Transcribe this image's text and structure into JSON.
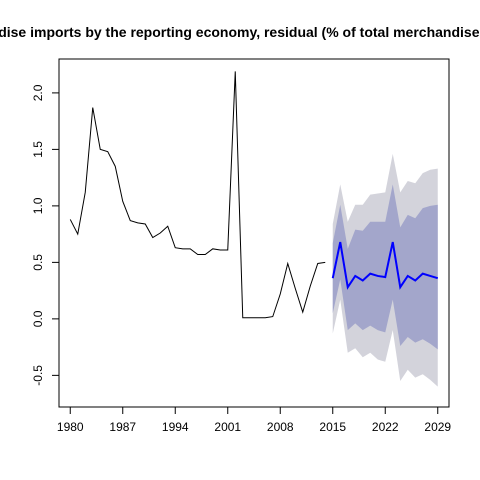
{
  "chart_data": {
    "type": "line",
    "title": "Merchandise imports by the reporting economy, residual (% of total merchandise imports)",
    "xlabel": "",
    "ylabel": "",
    "xlim": [
      1978.5,
      2030.5
    ],
    "ylim": [
      -0.78,
      2.3
    ],
    "xticks": [
      1980,
      1987,
      1994,
      2001,
      2008,
      2015,
      2022,
      2029
    ],
    "yticks": [
      -0.5,
      0.0,
      0.5,
      1.0,
      1.5,
      2.0
    ],
    "ytick_labels": [
      "-0.5",
      "0.0",
      "0.5",
      "1.0",
      "1.5",
      "2.0"
    ],
    "grid": false,
    "history": {
      "color": "#000000",
      "x": [
        1980,
        1981,
        1982,
        1983,
        1984,
        1985,
        1986,
        1987,
        1988,
        1989,
        1990,
        1991,
        1992,
        1993,
        1994,
        1995,
        1996,
        1997,
        1998,
        1999,
        2000,
        2001,
        2002,
        2003,
        2004,
        2005,
        2006,
        2007,
        2008,
        2009,
        2010,
        2011,
        2012,
        2013,
        2014
      ],
      "y": [
        0.88,
        0.75,
        1.12,
        1.87,
        1.5,
        1.48,
        1.35,
        1.04,
        0.87,
        0.85,
        0.84,
        0.72,
        0.76,
        0.82,
        0.63,
        0.62,
        0.62,
        0.57,
        0.57,
        0.62,
        0.61,
        0.61,
        2.19,
        0.01,
        0.01,
        0.01,
        0.01,
        0.02,
        0.22,
        0.49,
        0.27,
        0.06,
        0.29,
        0.49,
        0.5
      ]
    },
    "forecast": {
      "color": "#0000FF",
      "x": [
        2015,
        2016,
        2017,
        2018,
        2019,
        2020,
        2021,
        2022,
        2023,
        2024,
        2025,
        2026,
        2027,
        2028,
        2029
      ],
      "mean": [
        0.36,
        0.68,
        0.28,
        0.38,
        0.34,
        0.4,
        0.38,
        0.37,
        0.68,
        0.28,
        0.38,
        0.34,
        0.4,
        0.38,
        0.36
      ],
      "lo80": [
        0.05,
        0.35,
        -0.1,
        -0.04,
        -0.1,
        -0.06,
        -0.1,
        -0.12,
        0.17,
        -0.24,
        -0.16,
        -0.21,
        -0.18,
        -0.22,
        -0.27
      ],
      "hi80": [
        0.67,
        1.01,
        0.62,
        0.79,
        0.78,
        0.86,
        0.86,
        0.86,
        1.19,
        0.81,
        0.92,
        0.89,
        0.98,
        1.0,
        1.01
      ],
      "lo95": [
        -0.13,
        0.17,
        -0.3,
        -0.26,
        -0.34,
        -0.3,
        -0.36,
        -0.38,
        -0.1,
        -0.55,
        -0.45,
        -0.52,
        -0.49,
        -0.54,
        -0.6
      ],
      "hi95": [
        0.84,
        1.19,
        0.86,
        1.01,
        1.01,
        1.1,
        1.11,
        1.12,
        1.46,
        1.12,
        1.22,
        1.2,
        1.29,
        1.32,
        1.33
      ],
      "band80_color": "#A3A6CB",
      "band95_color": "#D3D3DB"
    }
  }
}
